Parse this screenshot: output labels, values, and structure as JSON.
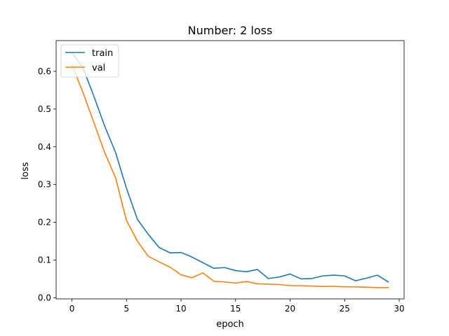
{
  "chart_data": {
    "type": "line",
    "title": "Number: 2 loss",
    "xlabel": "epoch",
    "ylabel": "loss",
    "xlim": [
      -1.45,
      30.45
    ],
    "ylim": [
      -0.003,
      0.6815
    ],
    "xticks": [
      0,
      5,
      10,
      15,
      20,
      25,
      30
    ],
    "yticks": [
      0.0,
      0.1,
      0.2,
      0.3,
      0.4,
      0.5,
      0.6
    ],
    "grid": false,
    "legend_position": "upper-left",
    "x": [
      0,
      1,
      2,
      3,
      4,
      5,
      6,
      7,
      8,
      9,
      10,
      11,
      12,
      13,
      14,
      15,
      16,
      17,
      18,
      19,
      20,
      21,
      22,
      23,
      24,
      25,
      26,
      27,
      28,
      29
    ],
    "series": [
      {
        "name": "train",
        "color": "#1f77b4",
        "values": [
          0.65,
          0.61,
          0.535,
          0.455,
          0.385,
          0.29,
          0.208,
          0.168,
          0.133,
          0.119,
          0.12,
          0.108,
          0.093,
          0.078,
          0.08,
          0.072,
          0.069,
          0.075,
          0.051,
          0.055,
          0.063,
          0.05,
          0.051,
          0.058,
          0.06,
          0.058,
          0.045,
          0.052,
          0.06,
          0.042
        ]
      },
      {
        "name": "val",
        "color": "#ff7f0e",
        "values": [
          0.617,
          0.545,
          0.465,
          0.385,
          0.318,
          0.205,
          0.15,
          0.11,
          0.095,
          0.081,
          0.061,
          0.053,
          0.066,
          0.044,
          0.042,
          0.039,
          0.043,
          0.037,
          0.036,
          0.035,
          0.032,
          0.032,
          0.031,
          0.03,
          0.03,
          0.029,
          0.029,
          0.028,
          0.027,
          0.027
        ]
      }
    ]
  }
}
